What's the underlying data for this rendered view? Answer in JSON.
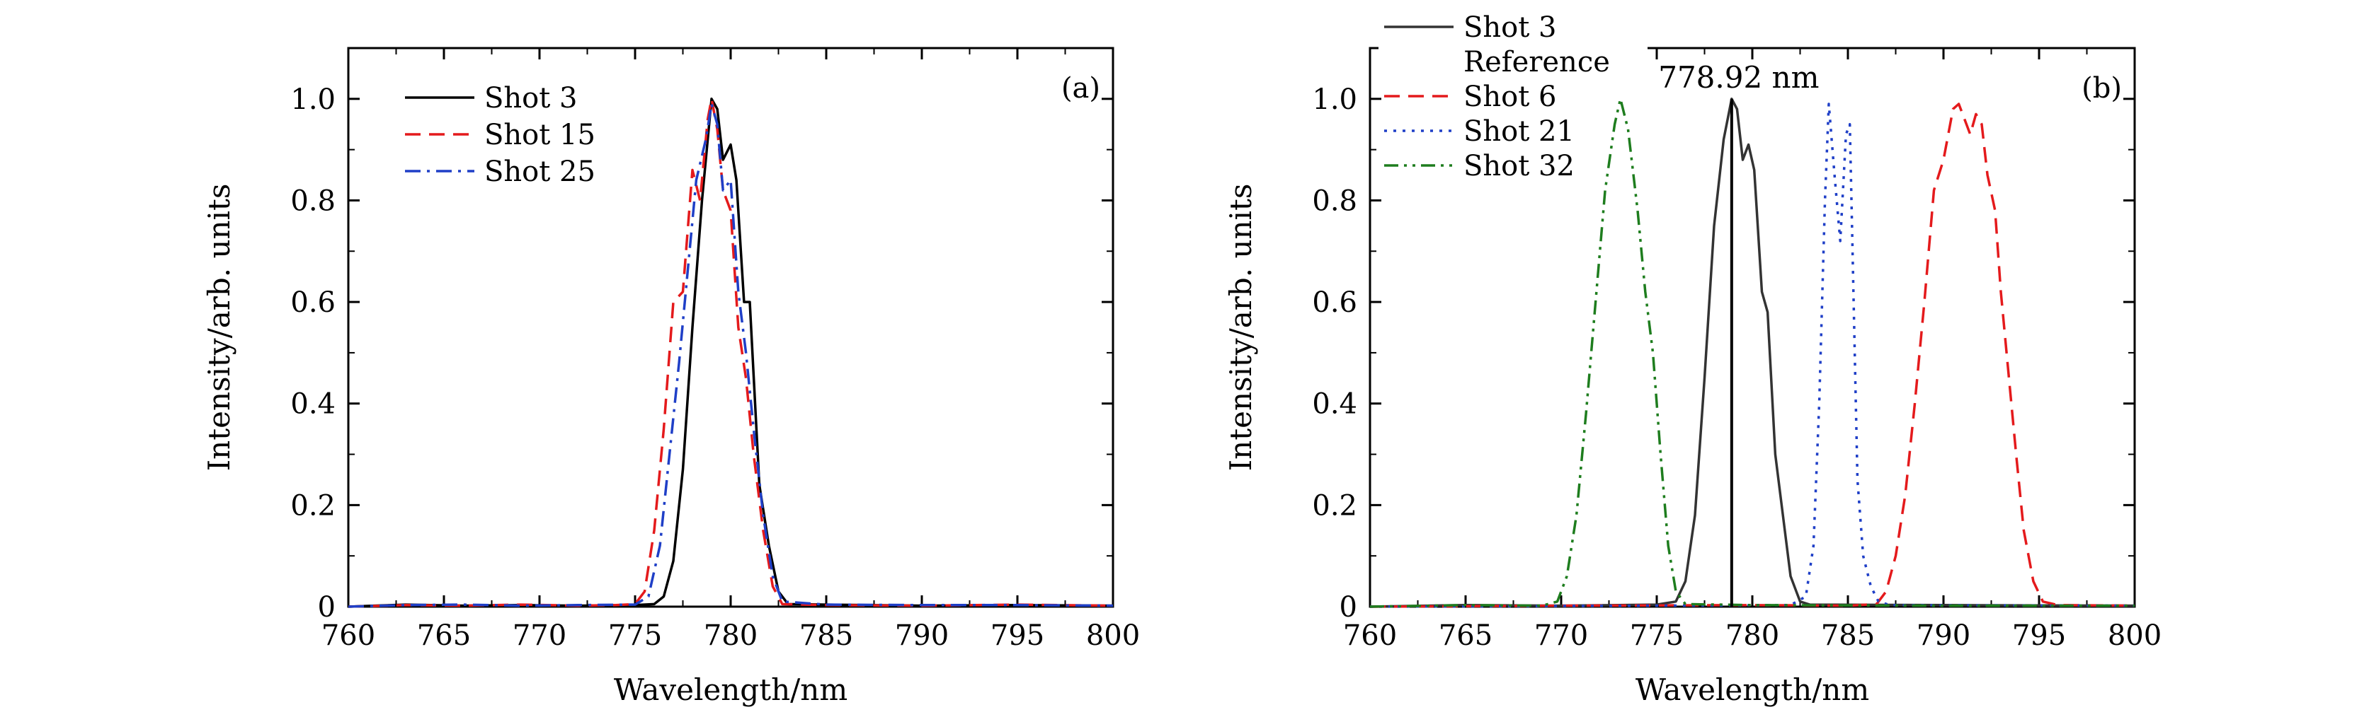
{
  "figure": {
    "panels": [
      {
        "tag": "(a)",
        "xlabel": "Wavelength/nm",
        "ylabel": "Intensity/arb. units"
      },
      {
        "tag": "(b)",
        "xlabel": "Wavelength/nm",
        "ylabel": "Intensity/arb. units",
        "annotation": "778.92 nm"
      }
    ]
  },
  "chart_data": [
    {
      "type": "line",
      "title": "",
      "panel_tag": "(a)",
      "xlabel": "Wavelength/nm",
      "ylabel": "Intensity/arb. units",
      "xlim": [
        760,
        800
      ],
      "ylim": [
        0,
        1.1
      ],
      "x_ticks": [
        760,
        765,
        770,
        775,
        780,
        785,
        790,
        795,
        800
      ],
      "y_ticks": [
        0,
        0.2,
        0.4,
        0.6,
        0.8,
        1.0
      ],
      "y_tick_labels": [
        "0",
        "0.2",
        "0.4",
        "0.6",
        "0.8",
        "1.0"
      ],
      "legend": "top-left",
      "grid": false,
      "series": [
        {
          "name": "Shot 3",
          "color": "#000000",
          "dash": "solid",
          "points": [
            [
              760,
              0
            ],
            [
              763,
              0.004
            ],
            [
              766,
              0.002
            ],
            [
              769,
              0.003
            ],
            [
              772,
              0.002
            ],
            [
              775,
              0.003
            ],
            [
              776,
              0.005
            ],
            [
              776.5,
              0.02
            ],
            [
              777,
              0.09
            ],
            [
              777.5,
              0.27
            ],
            [
              778,
              0.55
            ],
            [
              778.5,
              0.8
            ],
            [
              779,
              1.0
            ],
            [
              779.3,
              0.98
            ],
            [
              779.6,
              0.88
            ],
            [
              780,
              0.91
            ],
            [
              780.3,
              0.84
            ],
            [
              780.7,
              0.6
            ],
            [
              781,
              0.6
            ],
            [
              781.5,
              0.24
            ],
            [
              782,
              0.12
            ],
            [
              782.5,
              0.03
            ],
            [
              783,
              0.005
            ],
            [
              785,
              0.004
            ],
            [
              790,
              0.002
            ],
            [
              795,
              0.003
            ],
            [
              800,
              0.002
            ]
          ]
        },
        {
          "name": "Shot 15",
          "color": "#e41a1c",
          "dash": "dashed",
          "points": [
            [
              760,
              0
            ],
            [
              763,
              0.003
            ],
            [
              766,
              0.002
            ],
            [
              769,
              0.004
            ],
            [
              772,
              0.002
            ],
            [
              774,
              0.003
            ],
            [
              775,
              0.005
            ],
            [
              775.5,
              0.03
            ],
            [
              776,
              0.15
            ],
            [
              776.5,
              0.35
            ],
            [
              777,
              0.6
            ],
            [
              777.5,
              0.62
            ],
            [
              778,
              0.86
            ],
            [
              778.4,
              0.8
            ],
            [
              778.8,
              0.96
            ],
            [
              779,
              1.0
            ],
            [
              779.3,
              0.94
            ],
            [
              779.6,
              0.82
            ],
            [
              780,
              0.78
            ],
            [
              780.4,
              0.55
            ],
            [
              780.8,
              0.45
            ],
            [
              781.2,
              0.3
            ],
            [
              781.7,
              0.15
            ],
            [
              782.2,
              0.04
            ],
            [
              782.7,
              0.005
            ],
            [
              785,
              0.003
            ],
            [
              790,
              0.002
            ],
            [
              795,
              0.004
            ],
            [
              800,
              0.002
            ]
          ]
        },
        {
          "name": "Shot 25",
          "color": "#1f3fc7",
          "dash": "dashdot",
          "points": [
            [
              760,
              0
            ],
            [
              763,
              0.003
            ],
            [
              766,
              0.004
            ],
            [
              769,
              0.002
            ],
            [
              772,
              0.003
            ],
            [
              775,
              0.004
            ],
            [
              775.7,
              0.02
            ],
            [
              776.3,
              0.12
            ],
            [
              776.8,
              0.3
            ],
            [
              777.3,
              0.48
            ],
            [
              777.8,
              0.68
            ],
            [
              778.2,
              0.84
            ],
            [
              778.7,
              0.92
            ],
            [
              779,
              0.99
            ],
            [
              779.3,
              0.95
            ],
            [
              779.6,
              0.82
            ],
            [
              780,
              0.84
            ],
            [
              780.4,
              0.62
            ],
            [
              780.8,
              0.5
            ],
            [
              781.2,
              0.35
            ],
            [
              781.7,
              0.18
            ],
            [
              782.2,
              0.06
            ],
            [
              782.7,
              0.01
            ],
            [
              785,
              0.004
            ],
            [
              790,
              0.003
            ],
            [
              795,
              0.003
            ],
            [
              800,
              0.002
            ]
          ]
        }
      ]
    },
    {
      "type": "line",
      "title": "",
      "panel_tag": "(b)",
      "xlabel": "Wavelength/nm",
      "ylabel": "Intensity/arb. units",
      "xlim": [
        760,
        800
      ],
      "ylim": [
        0,
        1.1
      ],
      "x_ticks": [
        760,
        765,
        770,
        775,
        780,
        785,
        790,
        795,
        800
      ],
      "y_ticks": [
        0,
        0.2,
        0.4,
        0.6,
        0.8,
        1.0
      ],
      "y_tick_labels": [
        "0",
        "0.2",
        "0.4",
        "0.6",
        "0.8",
        "1.0"
      ],
      "legend": "top-left",
      "grid": false,
      "annotation": {
        "text": "778.92 nm",
        "x": 778.92
      },
      "series": [
        {
          "name": "Shot 3",
          "color": "#333333",
          "dash": "solid",
          "legend_lines": [
            "Shot 3",
            "Reference"
          ],
          "points": [
            [
              760,
              0
            ],
            [
              765,
              0.003
            ],
            [
              770,
              0.002
            ],
            [
              775,
              0.004
            ],
            [
              776,
              0.01
            ],
            [
              776.5,
              0.05
            ],
            [
              777,
              0.18
            ],
            [
              777.5,
              0.45
            ],
            [
              778,
              0.75
            ],
            [
              778.5,
              0.92
            ],
            [
              778.92,
              1.0
            ],
            [
              779.2,
              0.98
            ],
            [
              779.5,
              0.88
            ],
            [
              779.8,
              0.91
            ],
            [
              780.1,
              0.86
            ],
            [
              780.5,
              0.62
            ],
            [
              780.8,
              0.58
            ],
            [
              781.2,
              0.3
            ],
            [
              781.6,
              0.18
            ],
            [
              782,
              0.06
            ],
            [
              782.5,
              0.01
            ],
            [
              783,
              0.004
            ],
            [
              790,
              0.003
            ],
            [
              800,
              0.002
            ]
          ]
        },
        {
          "name": "Shot 6",
          "color": "#e41a1c",
          "dash": "dashed",
          "points": [
            [
              760,
              0
            ],
            [
              770,
              0.002
            ],
            [
              780,
              0.003
            ],
            [
              785,
              0.002
            ],
            [
              786.5,
              0.005
            ],
            [
              787,
              0.03
            ],
            [
              787.5,
              0.1
            ],
            [
              788,
              0.22
            ],
            [
              788.5,
              0.4
            ],
            [
              789,
              0.6
            ],
            [
              789.5,
              0.82
            ],
            [
              790,
              0.88
            ],
            [
              790.5,
              0.98
            ],
            [
              790.8,
              0.99
            ],
            [
              791.1,
              0.96
            ],
            [
              791.4,
              0.93
            ],
            [
              791.7,
              0.97
            ],
            [
              792,
              0.95
            ],
            [
              792.3,
              0.85
            ],
            [
              792.7,
              0.78
            ],
            [
              793,
              0.62
            ],
            [
              793.4,
              0.46
            ],
            [
              793.8,
              0.3
            ],
            [
              794.2,
              0.15
            ],
            [
              794.7,
              0.05
            ],
            [
              795.2,
              0.01
            ],
            [
              796,
              0.003
            ],
            [
              800,
              0.002
            ]
          ]
        },
        {
          "name": "Shot 21",
          "color": "#1f3fc7",
          "dash": "dotted",
          "points": [
            [
              760,
              0
            ],
            [
              775,
              0.002
            ],
            [
              782,
              0.003
            ],
            [
              782.8,
              0.02
            ],
            [
              783.2,
              0.12
            ],
            [
              783.5,
              0.4
            ],
            [
              783.8,
              0.8
            ],
            [
              784,
              0.99
            ],
            [
              784.3,
              0.85
            ],
            [
              784.6,
              0.72
            ],
            [
              784.9,
              0.93
            ],
            [
              785.1,
              0.95
            ],
            [
              785.3,
              0.6
            ],
            [
              785.5,
              0.25
            ],
            [
              785.8,
              0.1
            ],
            [
              786.2,
              0.04
            ],
            [
              786.6,
              0.01
            ],
            [
              787.2,
              0.003
            ],
            [
              800,
              0.002
            ]
          ]
        },
        {
          "name": "Shot 32",
          "color": "#1e7d1e",
          "dash": "dashdotdot",
          "points": [
            [
              760,
              0
            ],
            [
              765,
              0.003
            ],
            [
              769,
              0.002
            ],
            [
              769.8,
              0.01
            ],
            [
              770.3,
              0.06
            ],
            [
              770.8,
              0.18
            ],
            [
              771.3,
              0.38
            ],
            [
              771.8,
              0.6
            ],
            [
              772.3,
              0.82
            ],
            [
              772.8,
              0.95
            ],
            [
              773.1,
              1.0
            ],
            [
              773.5,
              0.94
            ],
            [
              774,
              0.78
            ],
            [
              774.4,
              0.62
            ],
            [
              774.8,
              0.5
            ],
            [
              775.2,
              0.3
            ],
            [
              775.6,
              0.12
            ],
            [
              776,
              0.03
            ],
            [
              776.5,
              0.005
            ],
            [
              780,
              0.003
            ],
            [
              790,
              0.002
            ],
            [
              800,
              0.002
            ]
          ]
        }
      ]
    }
  ]
}
